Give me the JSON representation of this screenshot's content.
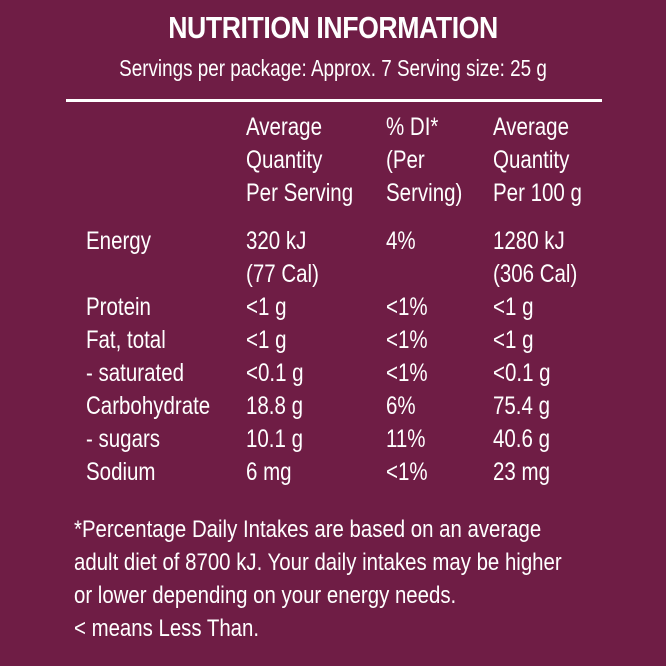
{
  "title": "NUTRITION INFORMATION",
  "subtitle": "Servings per package: Approx. 7 Serving size: 25 g",
  "headers": {
    "per_serving": [
      "Average",
      "Quantity",
      "Per Serving"
    ],
    "percent_di": [
      "% DI*",
      "(Per",
      "Serving)"
    ],
    "per_100g": [
      "Average",
      "Quantity",
      "Per 100 g"
    ]
  },
  "rows": [
    {
      "label": "Energy",
      "serving": "320 kJ",
      "serving2": "(77 Cal)",
      "di": "4%",
      "per100": "1280 kJ",
      "per100_2": "(306 Cal)"
    },
    {
      "label": "Protein",
      "serving": "<1 g",
      "di": "<1%",
      "per100": "<1 g"
    },
    {
      "label": "Fat, total",
      "serving": "<1 g",
      "di": "<1%",
      "per100": "<1 g"
    },
    {
      "label": "- saturated",
      "serving": "<0.1 g",
      "di": "<1%",
      "per100": "<0.1 g"
    },
    {
      "label": "Carbohydrate",
      "serving": "18.8 g",
      "di": "6%",
      "per100": "75.4 g"
    },
    {
      "label": "- sugars",
      "serving": "10.1 g",
      "di": "11%",
      "per100": "40.6 g"
    },
    {
      "label": "Sodium",
      "serving": "6 mg",
      "di": "<1%",
      "per100": "23 mg"
    }
  ],
  "footer": [
    "*Percentage Daily Intakes are based on an average",
    "adult diet of 8700 kJ. Your daily intakes may be higher",
    "or lower depending on your energy needs.",
    "< means Less Than."
  ],
  "colors": {
    "background": "#6f1d45",
    "text": "#ffffff"
  }
}
